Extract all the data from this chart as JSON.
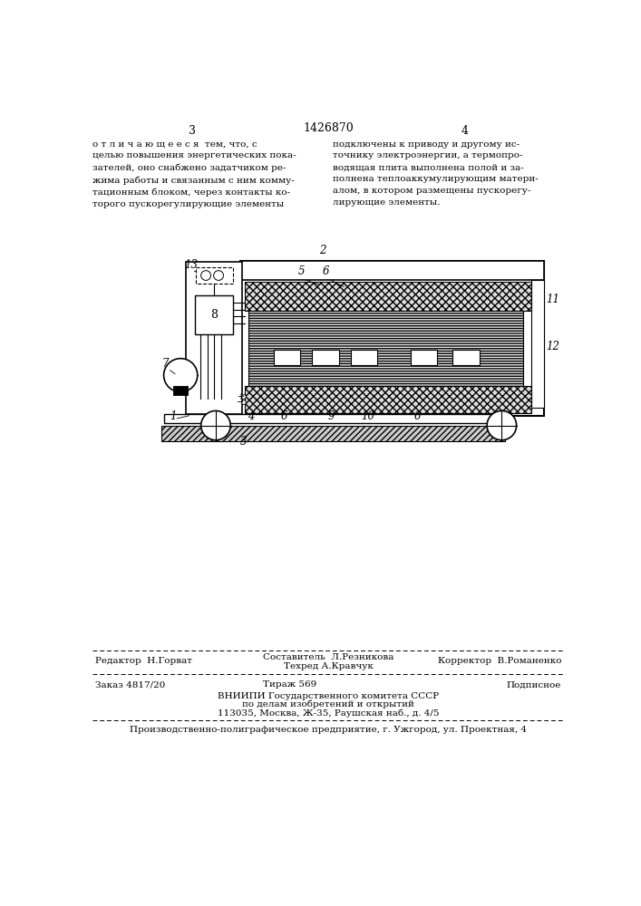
{
  "page_num_left": "3",
  "page_num_right": "4",
  "patent_num": "1426870",
  "text_left": "о т л и ч а ю щ е е с я  тем, что, с\nцелью повышения энергетических пока-\nзателей, оно снабжено задатчиком ре-\nжима работы и связанным с ним комму-\nтационным блоком, через контакты ко-\nторого пускорегулирующие элементы",
  "text_right": "подключены к приводу и другому ис-\nточнику электроэнергии, а термопро-\nводящая плита выполнена полой и за-\nполнена теплоаккумулирующим матери-\nалом, в котором размещены пускорегу-\nлирующие элементы.",
  "editor_label": "Редактор  Н.Горват",
  "composer_label": "Составитель  Л.Резникова",
  "techred_label": "Техред А.Кравчук",
  "corrector_label": "Корректор  В.Романенко",
  "order_label": "Заказ 4817/20",
  "tirazh_label": "Тираж 569",
  "podpisnoe_label": "Подписное",
  "vniiipi_line1": "ВНИИПИ Государственного комитета СССР",
  "vniiipi_line2": "по делам изобретений и открытий",
  "vniiipi_line3": "113035, Москва, Ж-35, Раушская наб., д. 4/5",
  "factory_line": "Производственно-полиграфическое предприятие, г. Ужгород, ул. Проектная, 4",
  "bg_color": "#ffffff",
  "text_color": "#000000"
}
